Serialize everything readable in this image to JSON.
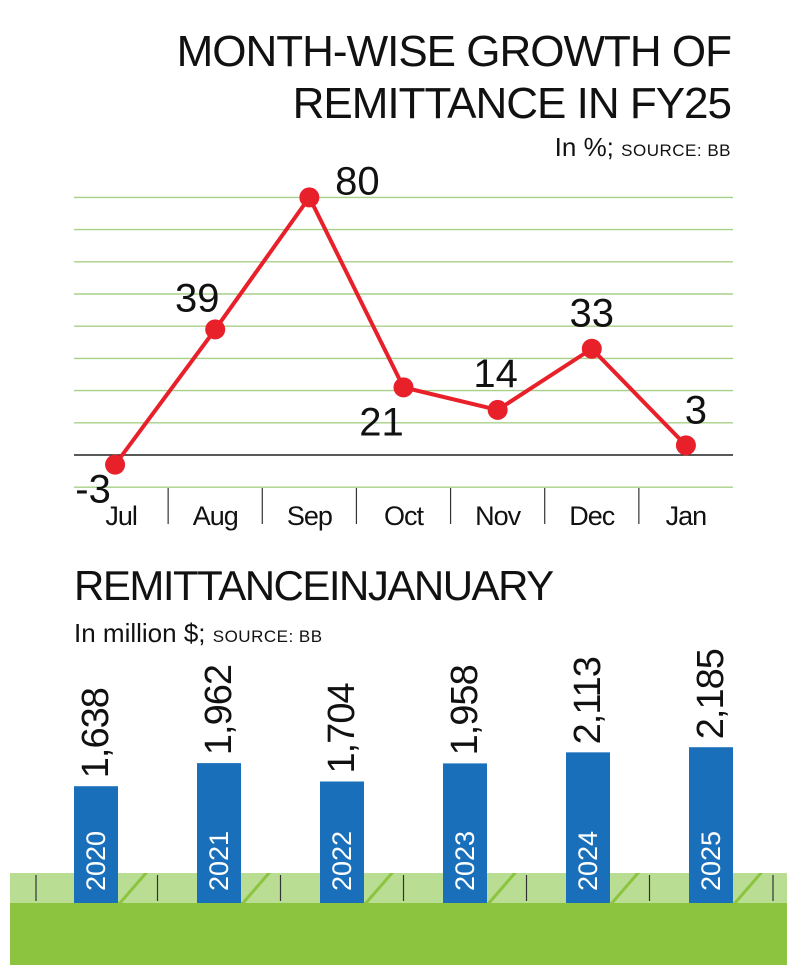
{
  "line_chart": {
    "title_line1": "MONTH-WISE GROWTH OF",
    "title_line2": "REMITTANCE IN FY25",
    "subtitle_unit": "In %;",
    "subtitle_source": "SOURCE: BB"
  },
  "bar_chart": {
    "title": "REMITTANCEINJANUARY",
    "subtitle_unit": "In million $;",
    "subtitle_source": "SOURCE: BB"
  },
  "colors": {
    "line": "#e8202a",
    "point": "#e8202a",
    "grid": "#a8d08a",
    "bar": "#1a6fba",
    "ground_light": "#b9dd93",
    "ground_dark": "#8cc43f"
  },
  "chart_data": [
    {
      "type": "line",
      "title": "MONTH-WISE GROWTH OF REMITTANCE IN FY25",
      "subtitle": "In %; SOURCE: BB",
      "categories": [
        "Jul",
        "Aug",
        "Sep",
        "Oct",
        "Nov",
        "Dec",
        "Jan"
      ],
      "values": [
        -3,
        39,
        80,
        21,
        14,
        33,
        3
      ],
      "data_labels": [
        "-3",
        "39",
        "80",
        "21",
        "14",
        "33",
        "3"
      ],
      "ylim": [
        -10,
        90
      ],
      "grid": true
    },
    {
      "type": "bar",
      "title": "REMITTANCEINJANUARY",
      "subtitle": "In million $; SOURCE: BB",
      "categories": [
        "2020",
        "2021",
        "2022",
        "2023",
        "2024",
        "2025"
      ],
      "values": [
        1638,
        1962,
        1704,
        1958,
        2113,
        2185
      ],
      "data_labels": [
        "1,638",
        "1,962",
        "1,704",
        "1,958",
        "2,113",
        "2,185"
      ]
    }
  ]
}
